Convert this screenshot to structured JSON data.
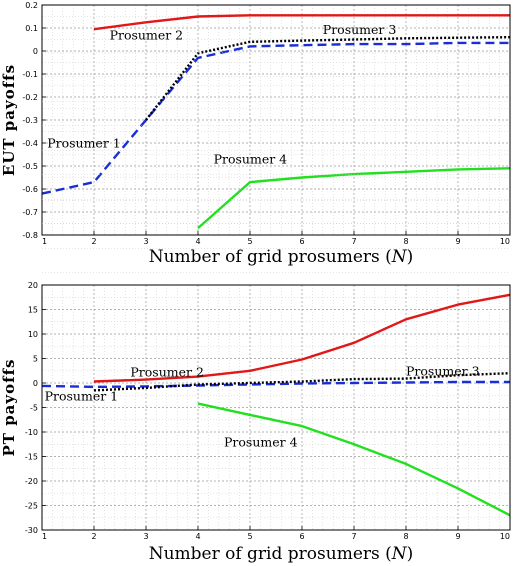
{
  "chart_data": [
    {
      "type": "line",
      "xlabel": "Number of grid prosumers (N)",
      "ylabel": "EUT payoffs",
      "xlim": [
        1,
        10
      ],
      "ylim": [
        -0.8,
        0.2
      ],
      "xticks": [
        "1",
        "2",
        "3",
        "4",
        "5",
        "6",
        "7",
        "8",
        "9",
        "10"
      ],
      "yticks": [
        "0.2",
        "0.1",
        "0",
        "-0.1",
        "-0.2",
        "-0.3",
        "-0.4",
        "-0.5",
        "-0.6",
        "-0.7",
        "-0.8"
      ],
      "grid": true,
      "series": [
        {
          "name": "Prosumer 1",
          "color": "#1a2ed6",
          "style": "dashed",
          "x": [
            1,
            2,
            3,
            4,
            5,
            6,
            7,
            8,
            9,
            10
          ],
          "y": [
            -0.62,
            -0.57,
            -0.3,
            -0.03,
            0.02,
            0.025,
            0.03,
            0.03,
            0.035,
            0.035
          ]
        },
        {
          "name": "Prosumer 2",
          "color": "#e01818",
          "style": "solid",
          "x": [
            2,
            3,
            4,
            5,
            6,
            7,
            8,
            9,
            10
          ],
          "y": [
            0.095,
            0.125,
            0.15,
            0.155,
            0.155,
            0.155,
            0.155,
            0.155,
            0.155
          ]
        },
        {
          "name": "Prosumer 3",
          "color": "#000000",
          "style": "dotted",
          "x": [
            3,
            4,
            5,
            6,
            7,
            8,
            9,
            10
          ],
          "y": [
            -0.3,
            -0.01,
            0.04,
            0.045,
            0.05,
            0.055,
            0.058,
            0.06
          ]
        },
        {
          "name": "Prosumer 4",
          "color": "#22e01f",
          "style": "solid",
          "x": [
            4,
            5,
            6,
            7,
            8,
            9,
            10
          ],
          "y": [
            -0.77,
            -0.57,
            -0.55,
            -0.535,
            -0.525,
            -0.515,
            -0.51
          ]
        }
      ],
      "annotations": [
        {
          "text": "Prosumer 2",
          "x": 2.3,
          "y": 0.05
        },
        {
          "text": "Prosumer 3",
          "x": 6.4,
          "y": 0.075
        },
        {
          "text": "Prosumer 1",
          "x": 1.1,
          "y": -0.42
        },
        {
          "text": "Prosumer 4",
          "x": 4.3,
          "y": -0.49
        }
      ]
    },
    {
      "type": "line",
      "xlabel": "Number of grid prosumers (N)",
      "ylabel": "PT payoffs",
      "xlim": [
        1,
        10
      ],
      "ylim": [
        -30,
        20
      ],
      "xticks": [
        "1",
        "2",
        "3",
        "4",
        "5",
        "6",
        "7",
        "8",
        "9",
        "10"
      ],
      "yticks": [
        "20",
        "15",
        "10",
        "5",
        "0",
        "-5",
        "-10",
        "-15",
        "-20",
        "-25",
        "-30"
      ],
      "grid": true,
      "series": [
        {
          "name": "Prosumer 1",
          "color": "#1a2ed6",
          "style": "dashed",
          "x": [
            1,
            2,
            3,
            4,
            5,
            6,
            7,
            8,
            9,
            10
          ],
          "y": [
            -0.6,
            -0.8,
            -0.7,
            -0.5,
            -0.3,
            -0.1,
            0.0,
            0.1,
            0.2,
            0.2
          ]
        },
        {
          "name": "Prosumer 2",
          "color": "#e01818",
          "style": "solid",
          "x": [
            2,
            3,
            4,
            5,
            6,
            7,
            8,
            9,
            10
          ],
          "y": [
            0.3,
            0.7,
            1.3,
            2.5,
            4.8,
            8.2,
            13.0,
            16.0,
            18.0
          ]
        },
        {
          "name": "Prosumer 3",
          "color": "#000000",
          "style": "dotted",
          "x": [
            2,
            3,
            4,
            5,
            6,
            7,
            8,
            9,
            10
          ],
          "y": [
            -1.5,
            -1.0,
            -0.3,
            0.0,
            0.3,
            0.8,
            0.9,
            1.6,
            2.0
          ]
        },
        {
          "name": "Prosumer 4",
          "color": "#22e01f",
          "style": "solid",
          "x": [
            4,
            5,
            6,
            7,
            8,
            9,
            10
          ],
          "y": [
            -4.2,
            -6.5,
            -8.8,
            -12.5,
            -16.5,
            -21.5,
            -27.0
          ]
        }
      ],
      "annotations": [
        {
          "text": "Prosumer 2",
          "x": 2.7,
          "y": 1.3
        },
        {
          "text": "Prosumer 3",
          "x": 8.0,
          "y": 1.5
        },
        {
          "text": "Prosumer 1",
          "x": 1.05,
          "y": -3.6
        },
        {
          "text": "Prosumer 4",
          "x": 4.5,
          "y": -13.0
        }
      ]
    }
  ]
}
